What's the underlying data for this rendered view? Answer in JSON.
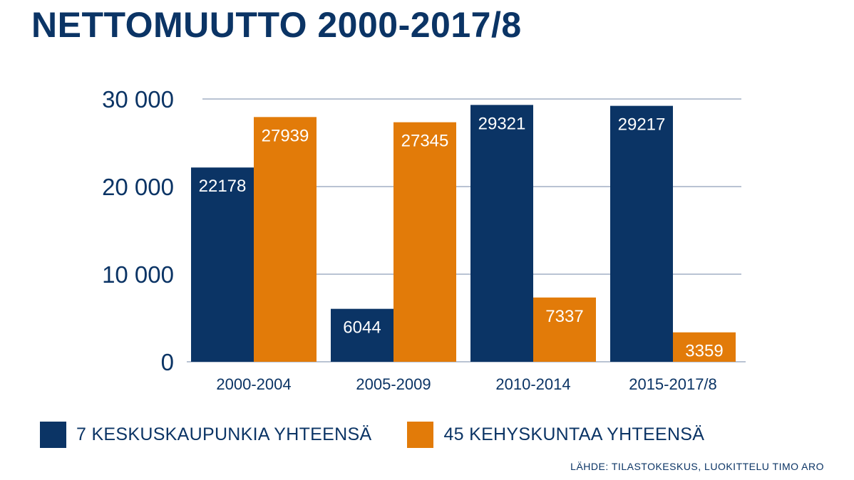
{
  "title": "NETTOMUUTTO 2000-2017/8",
  "source": "LÄHDE: TILASTOKESKUS, LUOKITTELU TIMO ARO",
  "colors": {
    "navy": "#0b3465",
    "orange": "#e27b09",
    "grid": "#b9c3d3"
  },
  "chart_data": {
    "type": "bar",
    "categories": [
      "2000-2004",
      "2005-2009",
      "2010-2014",
      "2015-2017/8"
    ],
    "series": [
      {
        "name": "7 KESKUSKAUPUNKIA YHTEENSÄ",
        "color": "#0b3465",
        "values": [
          22178,
          6044,
          29321,
          29217
        ]
      },
      {
        "name": "45 KEHYSKUNTAA YHTEENSÄ",
        "color": "#e27b09",
        "values": [
          27939,
          27345,
          7337,
          3359
        ]
      }
    ],
    "ylim": [
      0,
      30000
    ],
    "yticks": [
      {
        "value": 0,
        "label": "0"
      },
      {
        "value": 10000,
        "label": "10 000"
      },
      {
        "value": 20000,
        "label": "20 000"
      },
      {
        "value": 30000,
        "label": "30 000"
      }
    ],
    "grid": true,
    "legend_position": "bottom",
    "data_labels": true
  }
}
